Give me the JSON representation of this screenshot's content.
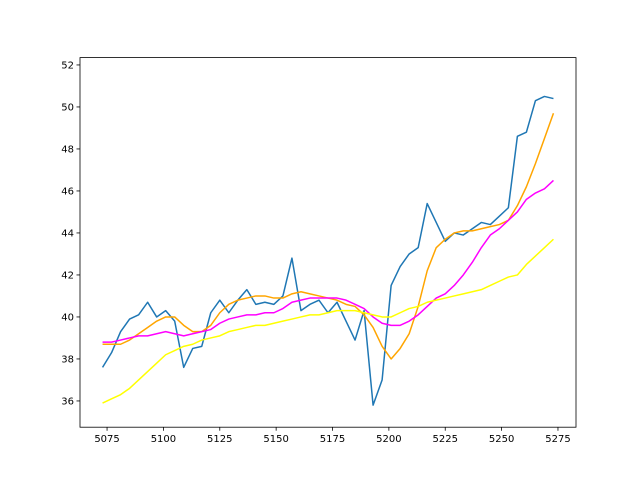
{
  "chart_data": {
    "type": "line",
    "x": [
      5073,
      5077,
      5081,
      5085,
      5089,
      5093,
      5097,
      5101,
      5105,
      5109,
      5113,
      5117,
      5121,
      5125,
      5129,
      5133,
      5137,
      5141,
      5145,
      5149,
      5153,
      5157,
      5161,
      5165,
      5169,
      5173,
      5177,
      5181,
      5185,
      5189,
      5193,
      5197,
      5201,
      5205,
      5209,
      5213,
      5217,
      5221,
      5225,
      5229,
      5233,
      5237,
      5241,
      5245,
      5249,
      5253,
      5257,
      5261,
      5265,
      5269,
      5273
    ],
    "series": [
      {
        "color": "#1f77b4",
        "values": [
          37.6,
          38.3,
          39.3,
          39.9,
          40.1,
          40.7,
          40.0,
          40.3,
          39.8,
          37.6,
          38.5,
          38.6,
          40.2,
          40.8,
          40.2,
          40.8,
          41.3,
          40.6,
          40.7,
          40.6,
          41.0,
          42.8,
          40.3,
          40.6,
          40.8,
          40.2,
          40.7,
          39.8,
          38.9,
          40.3,
          35.8,
          37.0,
          41.5,
          42.4,
          43.0,
          43.3,
          45.4,
          44.5,
          43.6,
          44.0,
          43.9,
          44.2,
          44.5,
          44.4,
          44.8,
          45.2,
          48.6,
          48.8,
          50.3,
          50.5,
          50.4
        ]
      },
      {
        "color": "#ffa500",
        "values": [
          38.7,
          38.7,
          38.7,
          38.9,
          39.2,
          39.5,
          39.8,
          40.0,
          40.0,
          39.6,
          39.3,
          39.3,
          39.6,
          40.2,
          40.6,
          40.8,
          40.9,
          41.0,
          41.0,
          40.9,
          40.9,
          41.1,
          41.2,
          41.1,
          41.0,
          40.9,
          40.8,
          40.6,
          40.5,
          40.1,
          39.5,
          38.6,
          38.0,
          38.5,
          39.2,
          40.5,
          42.2,
          43.3,
          43.7,
          44.0,
          44.1,
          44.1,
          44.2,
          44.3,
          44.4,
          44.6,
          45.3,
          46.2,
          47.3,
          48.5,
          49.7
        ]
      },
      {
        "color": "#ff00ff",
        "values": [
          38.8,
          38.8,
          38.9,
          39.0,
          39.1,
          39.1,
          39.2,
          39.3,
          39.2,
          39.1,
          39.2,
          39.3,
          39.4,
          39.7,
          39.9,
          40.0,
          40.1,
          40.1,
          40.2,
          40.2,
          40.4,
          40.7,
          40.8,
          40.9,
          40.9,
          40.9,
          40.9,
          40.8,
          40.6,
          40.4,
          40.0,
          39.7,
          39.6,
          39.6,
          39.8,
          40.1,
          40.5,
          40.9,
          41.1,
          41.5,
          42.0,
          42.6,
          43.3,
          43.9,
          44.2,
          44.6,
          45.0,
          45.6,
          45.9,
          46.1,
          46.5
        ]
      },
      {
        "color": "#ffff00",
        "values": [
          35.9,
          36.1,
          36.3,
          36.6,
          37.0,
          37.4,
          37.8,
          38.2,
          38.4,
          38.6,
          38.7,
          38.9,
          39.0,
          39.1,
          39.3,
          39.4,
          39.5,
          39.6,
          39.6,
          39.7,
          39.8,
          39.9,
          40.0,
          40.1,
          40.1,
          40.2,
          40.3,
          40.3,
          40.3,
          40.2,
          40.1,
          40.0,
          40.0,
          40.2,
          40.4,
          40.5,
          40.7,
          40.8,
          40.9,
          41.0,
          41.1,
          41.2,
          41.3,
          41.5,
          41.7,
          41.9,
          42.0,
          42.5,
          42.9,
          43.3,
          43.7
        ]
      }
    ],
    "xlim": [
      5063,
      5283
    ],
    "xticks": [
      5075,
      5100,
      5125,
      5150,
      5175,
      5200,
      5225,
      5250,
      5275
    ],
    "ylim": [
      34.75,
      52.35
    ],
    "yticks": [
      36,
      38,
      40,
      42,
      44,
      46,
      48,
      50,
      52
    ]
  }
}
